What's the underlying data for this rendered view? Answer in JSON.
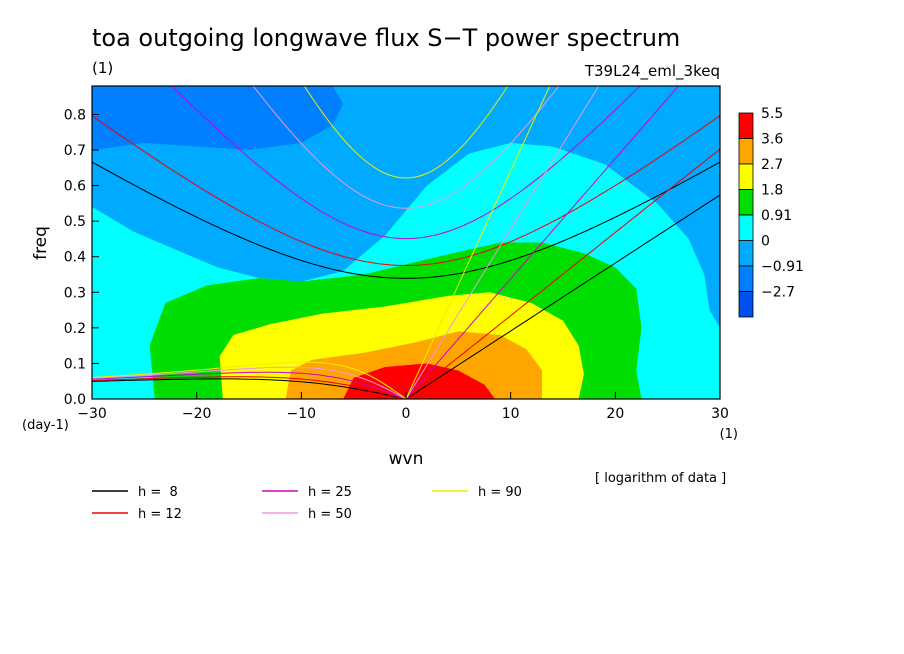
{
  "chart_data": {
    "type": "heatmap",
    "title": "toa outgoing longwave flux S−T power spectrum",
    "title_units": "(1)",
    "experiment": "T39L24_eml_3keq",
    "xlabel": "wvn",
    "x_units": "(1)",
    "ylabel": "freq",
    "y_units": "(day-1)",
    "xlim": [
      -30,
      30
    ],
    "ylim": [
      0,
      0.88
    ],
    "x_ticks": [
      "−30",
      "−20",
      "−10",
      "0",
      "10",
      "20",
      "30"
    ],
    "y_ticks": [
      "0.0",
      "0.1",
      "0.2",
      "0.3",
      "0.4",
      "0.5",
      "0.6",
      "0.7",
      "0.8"
    ],
    "note": "[ logarithm of data ]",
    "colorbar": {
      "levels": [
        "5.5",
        "3.6",
        "2.7",
        "1.8",
        "0.91",
        "0",
        "−0.91",
        "−2.7"
      ],
      "colors": [
        "#ff0000",
        "#ffa500",
        "#ffff00",
        "#00dd00",
        "#00ffff",
        "#00aaff",
        "#0080ff",
        "#0050ee"
      ]
    },
    "contour_fill_bands": [
      {
        "level": "0",
        "color": "#00aaff"
      },
      {
        "level": "0.91",
        "color": "#00ffff"
      },
      {
        "level": "1.8",
        "color": "#00dd00"
      },
      {
        "level": "2.7",
        "color": "#ffff00"
      },
      {
        "level": "3.6",
        "color": "#ffa500"
      },
      {
        "level": "5.5",
        "color": "#ff0000"
      }
    ],
    "dispersion_curves": [
      {
        "label": "h =  8",
        "h": 8,
        "color": "#000000"
      },
      {
        "label": "h = 12",
        "h": 12,
        "color": "#ee0000"
      },
      {
        "label": "h = 25",
        "h": 25,
        "color": "#cc00cc"
      },
      {
        "label": "h = 50",
        "h": 50,
        "color": "#ee99dd"
      },
      {
        "label": "h = 90",
        "h": 90,
        "color": "#eeee00"
      }
    ]
  }
}
